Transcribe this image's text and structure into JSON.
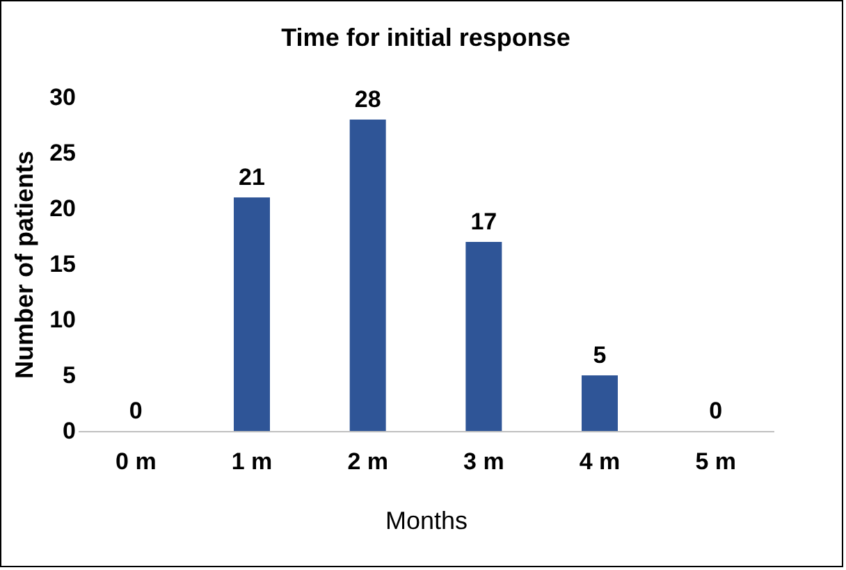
{
  "chart_data": {
    "type": "bar",
    "title": "Time for initial response",
    "xlabel": "Months",
    "ylabel": "Number of patients",
    "categories": [
      "0 m",
      "1 m",
      "2 m",
      "3 m",
      "4 m",
      "5 m"
    ],
    "values": [
      0,
      21,
      28,
      17,
      5,
      0
    ],
    "color": "#2f5597",
    "ylim": [
      0,
      30
    ],
    "yticks": [
      0,
      5,
      10,
      15,
      20,
      25,
      30
    ],
    "grid": false,
    "data_labels": true
  }
}
